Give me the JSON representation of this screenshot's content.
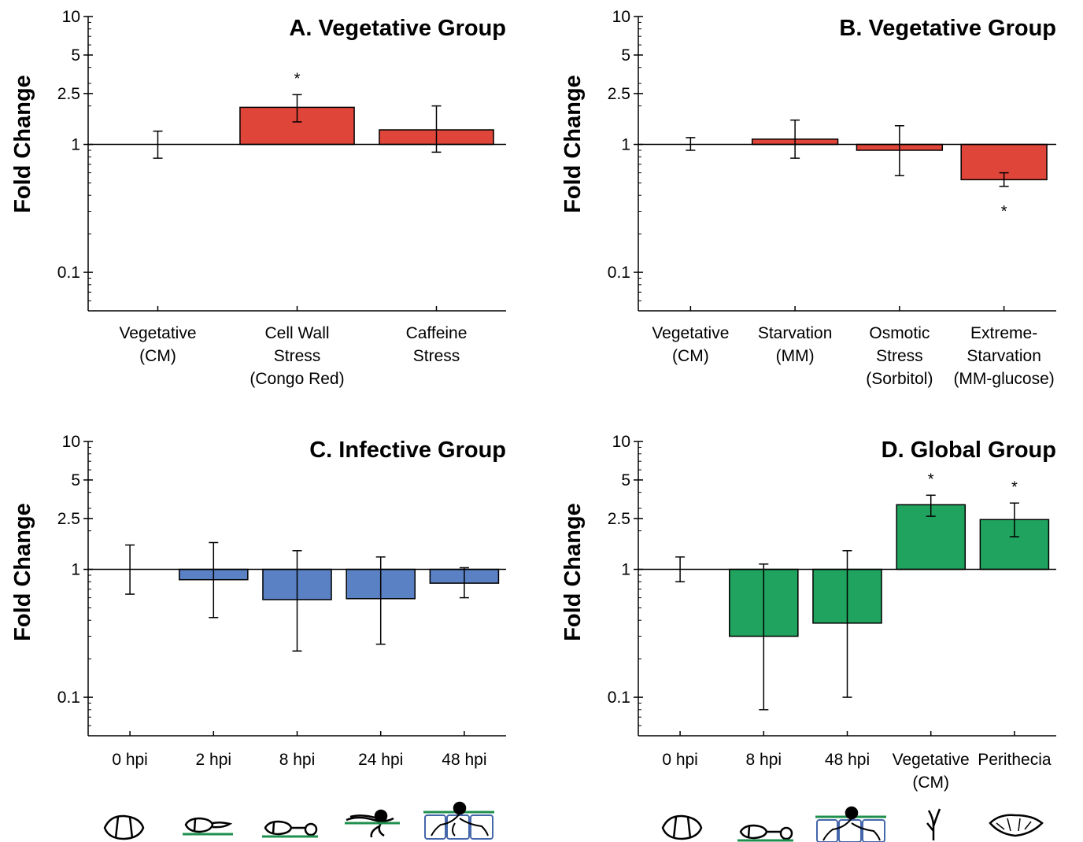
{
  "y_ticks": [
    "10",
    "5",
    "2.5",
    "1",
    "0.1"
  ],
  "colors": {
    "red": "#e0453a",
    "blue": "#5981c4",
    "green": "#1fa35e",
    "green_line": "#1f8f4e",
    "cell_blue": "#4466aa"
  },
  "chart_data": [
    {
      "type": "bar",
      "title": "A. Vegetative Group",
      "ylabel": "Fold Change",
      "yscale": "log",
      "ylim": [
        0.05,
        10
      ],
      "color": "#e0453a",
      "categories": [
        [
          "Vegetative",
          "(CM)"
        ],
        [
          "Cell Wall",
          "Stress",
          "(Congo Red)"
        ],
        [
          "Caffeine",
          "Stress"
        ]
      ],
      "values": [
        1.0,
        1.95,
        1.3
      ],
      "err_low": [
        0.78,
        1.5,
        0.87
      ],
      "err_high": [
        1.27,
        2.45,
        2.0
      ],
      "significant": [
        false,
        true,
        false
      ]
    },
    {
      "type": "bar",
      "title": "B. Vegetative Group",
      "ylabel": "Fold Change",
      "yscale": "log",
      "ylim": [
        0.05,
        10
      ],
      "color": "#e0453a",
      "categories": [
        [
          "Vegetative",
          "(CM)"
        ],
        [
          "Starvation",
          "(MM)"
        ],
        [
          "Osmotic",
          "Stress",
          "(Sorbitol)"
        ],
        [
          "Extreme-",
          "Starvation",
          "(MM-glucose)"
        ]
      ],
      "values": [
        1.0,
        1.1,
        0.9,
        0.53
      ],
      "err_low": [
        0.9,
        0.78,
        0.57,
        0.47
      ],
      "err_high": [
        1.13,
        1.55,
        1.4,
        0.6
      ],
      "significant": [
        false,
        false,
        false,
        true
      ]
    },
    {
      "type": "bar",
      "title": "C. Infective Group",
      "ylabel": "Fold Change",
      "yscale": "log",
      "ylim": [
        0.05,
        10
      ],
      "color": "#5981c4",
      "categories": [
        [
          "0 hpi"
        ],
        [
          "2 hpi"
        ],
        [
          "8 hpi"
        ],
        [
          "24 hpi"
        ],
        [
          "48 hpi"
        ]
      ],
      "values": [
        1.0,
        0.83,
        0.58,
        0.59,
        0.78
      ],
      "err_low": [
        0.64,
        0.42,
        0.23,
        0.26,
        0.6
      ],
      "err_high": [
        1.55,
        1.62,
        1.4,
        1.25,
        1.03
      ],
      "significant": [
        false,
        false,
        false,
        false,
        false
      ]
    },
    {
      "type": "bar",
      "title": "D. Global Group",
      "ylabel": "Fold Change",
      "yscale": "log",
      "ylim": [
        0.05,
        10
      ],
      "color": "#1fa35e",
      "categories": [
        [
          "0 hpi"
        ],
        [
          "8 hpi"
        ],
        [
          "48 hpi"
        ],
        [
          "Vegetative",
          "(CM)"
        ],
        [
          "Perithecia"
        ]
      ],
      "values": [
        1.0,
        0.3,
        0.38,
        3.2,
        2.45
      ],
      "err_low": [
        0.8,
        0.08,
        0.1,
        2.6,
        1.8
      ],
      "err_high": [
        1.25,
        1.1,
        1.4,
        3.8,
        3.3
      ],
      "significant": [
        false,
        false,
        false,
        true,
        true
      ]
    }
  ]
}
